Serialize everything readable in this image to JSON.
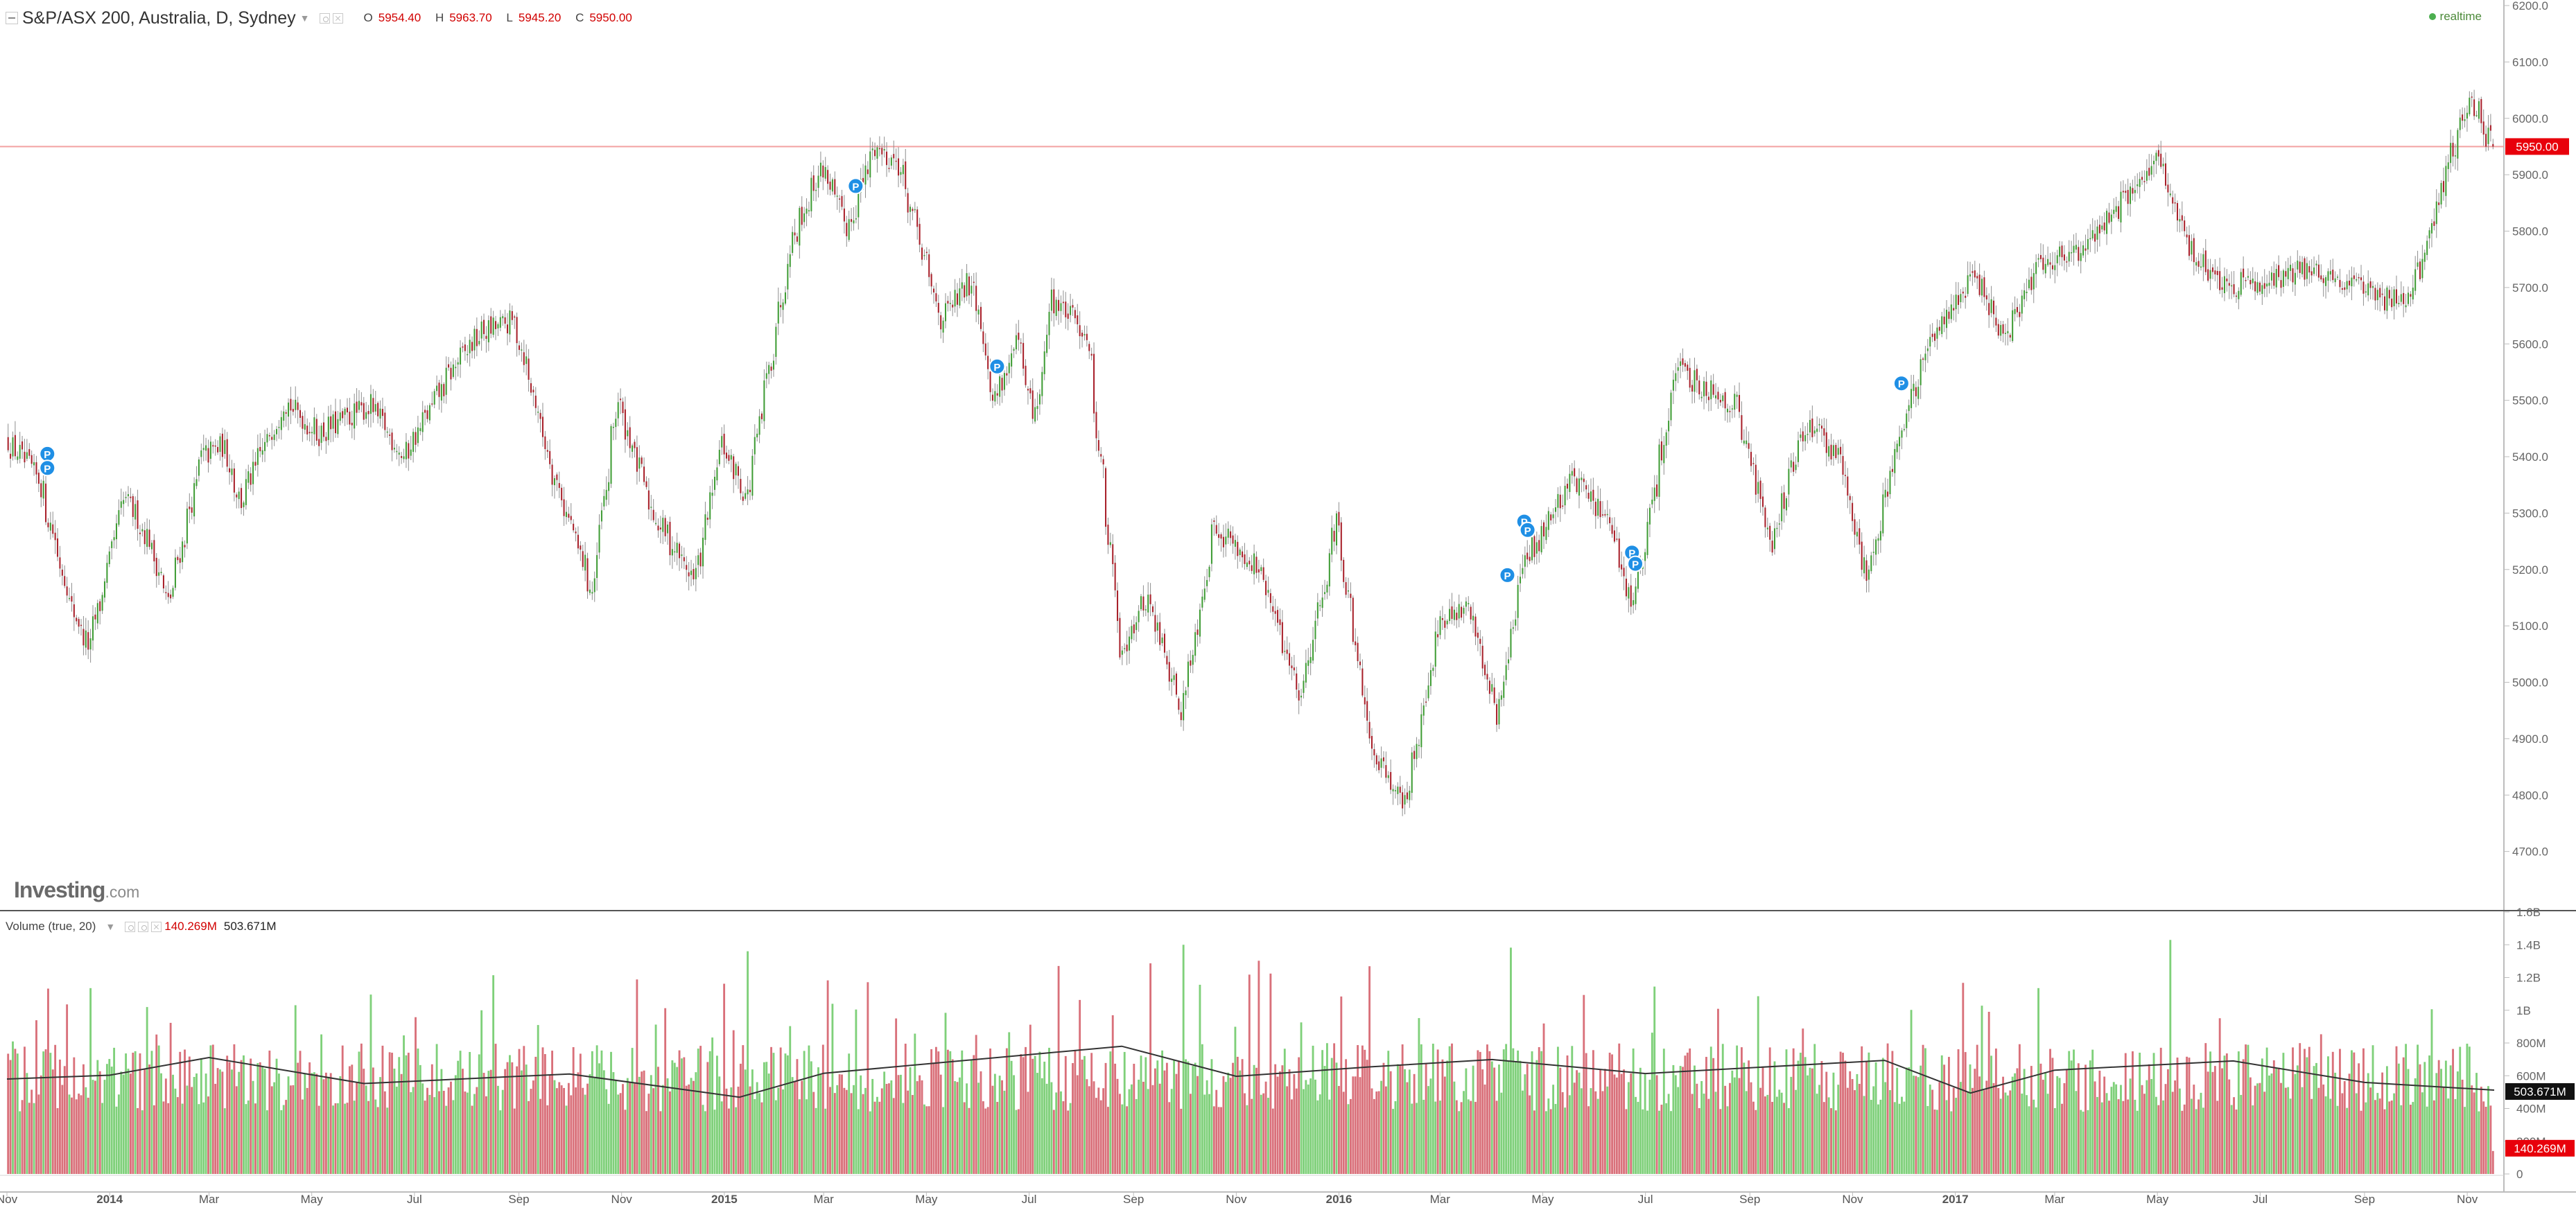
{
  "header": {
    "title": "S&P/ASX 200, Australia, D, Sydney",
    "ohlc": [
      {
        "label": "O",
        "value": "5954.40"
      },
      {
        "label": "H",
        "value": "5963.70"
      },
      {
        "label": "L",
        "value": "5945.20"
      },
      {
        "label": "C",
        "value": "5950.00"
      }
    ]
  },
  "status": {
    "realtime": "realtime"
  },
  "branding": {
    "logo_main": "Investing",
    "logo_suffix": ".com"
  },
  "volume_legend": {
    "title": "Volume (true, 20)",
    "value": "140.269M",
    "ma_value": "503.671M"
  },
  "colors": {
    "up": "#3f9c35",
    "down": "#a8202a",
    "vol_up": "#7fd07a",
    "vol_down": "#d9707a",
    "price_line": "#f3a0a0",
    "last_price_bg": "#e8000b",
    "ma_line": "#333333",
    "marker": "#1f8fe5"
  },
  "chart_data": [
    {
      "type": "candlestick",
      "title": "S&P/ASX 200, Australia, D, Sydney",
      "x_start": "2013-11-01",
      "x_end": "2017-11-17",
      "x_ticks": [
        {
          "label": "Nov",
          "date": "2013-11-01"
        },
        {
          "label": "2014",
          "date": "2014-01-01"
        },
        {
          "label": "Mar",
          "date": "2014-03-01"
        },
        {
          "label": "May",
          "date": "2014-05-01"
        },
        {
          "label": "Jul",
          "date": "2014-07-01"
        },
        {
          "label": "Sep",
          "date": "2014-09-01"
        },
        {
          "label": "Nov",
          "date": "2014-11-01"
        },
        {
          "label": "2015",
          "date": "2015-01-01"
        },
        {
          "label": "Mar",
          "date": "2015-03-01"
        },
        {
          "label": "May",
          "date": "2015-05-01"
        },
        {
          "label": "Jul",
          "date": "2015-07-01"
        },
        {
          "label": "Sep",
          "date": "2015-09-01"
        },
        {
          "label": "Nov",
          "date": "2015-11-01"
        },
        {
          "label": "2016",
          "date": "2016-01-01"
        },
        {
          "label": "Mar",
          "date": "2016-03-01"
        },
        {
          "label": "May",
          "date": "2016-05-01"
        },
        {
          "label": "Jul",
          "date": "2016-07-01"
        },
        {
          "label": "Sep",
          "date": "2016-09-01"
        },
        {
          "label": "Nov",
          "date": "2016-11-01"
        },
        {
          "label": "2017",
          "date": "2017-01-01"
        },
        {
          "label": "Mar",
          "date": "2017-03-01"
        },
        {
          "label": "May",
          "date": "2017-05-01"
        },
        {
          "label": "Jul",
          "date": "2017-07-01"
        },
        {
          "label": "Sep",
          "date": "2017-09-01"
        },
        {
          "label": "Nov",
          "date": "2017-11-01"
        }
      ],
      "y_ticks": [
        "4700.0",
        "4800.0",
        "4900.0",
        "5000.0",
        "5100.0",
        "5200.0",
        "5300.0",
        "5400.0",
        "5500.0",
        "5600.0",
        "5700.0",
        "5800.0",
        "5900.0",
        "6000.0",
        "6100.0",
        "6200.0"
      ],
      "ylim": [
        4600,
        6200
      ],
      "last_price": 5950.0,
      "last_price_label": "5950.00",
      "close_path": [
        {
          "date": "2013-11-01",
          "close": 5430
        },
        {
          "date": "2013-11-20",
          "close": 5360
        },
        {
          "date": "2013-12-10",
          "close": 5130
        },
        {
          "date": "2013-12-20",
          "close": 5060
        },
        {
          "date": "2014-01-10",
          "close": 5330
        },
        {
          "date": "2014-01-25",
          "close": 5250
        },
        {
          "date": "2014-02-05",
          "close": 5140
        },
        {
          "date": "2014-02-25",
          "close": 5400
        },
        {
          "date": "2014-03-10",
          "close": 5420
        },
        {
          "date": "2014-03-20",
          "close": 5320
        },
        {
          "date": "2014-04-15",
          "close": 5500
        },
        {
          "date": "2014-05-05",
          "close": 5440
        },
        {
          "date": "2014-06-05",
          "close": 5490
        },
        {
          "date": "2014-06-25",
          "close": 5400
        },
        {
          "date": "2014-07-25",
          "close": 5560
        },
        {
          "date": "2014-08-10",
          "close": 5620
        },
        {
          "date": "2014-08-30",
          "close": 5640
        },
        {
          "date": "2014-09-20",
          "close": 5390
        },
        {
          "date": "2014-10-15",
          "close": 5160
        },
        {
          "date": "2014-10-30",
          "close": 5500
        },
        {
          "date": "2014-11-20",
          "close": 5300
        },
        {
          "date": "2014-12-15",
          "close": 5180
        },
        {
          "date": "2014-12-31",
          "close": 5420
        },
        {
          "date": "2015-01-15",
          "close": 5330
        },
        {
          "date": "2015-02-10",
          "close": 5780
        },
        {
          "date": "2015-03-01",
          "close": 5920
        },
        {
          "date": "2015-03-15",
          "close": 5800
        },
        {
          "date": "2015-04-01",
          "close": 5950
        },
        {
          "date": "2015-04-15",
          "close": 5920
        },
        {
          "date": "2015-05-10",
          "close": 5640
        },
        {
          "date": "2015-05-30",
          "close": 5720
        },
        {
          "date": "2015-06-10",
          "close": 5500
        },
        {
          "date": "2015-06-25",
          "close": 5600
        },
        {
          "date": "2015-07-05",
          "close": 5450
        },
        {
          "date": "2015-07-15",
          "close": 5680
        },
        {
          "date": "2015-08-05",
          "close": 5620
        },
        {
          "date": "2015-08-25",
          "close": 5060
        },
        {
          "date": "2015-09-10",
          "close": 5150
        },
        {
          "date": "2015-09-30",
          "close": 4950
        },
        {
          "date": "2015-10-20",
          "close": 5280
        },
        {
          "date": "2015-11-15",
          "close": 5200
        },
        {
          "date": "2015-12-10",
          "close": 4980
        },
        {
          "date": "2015-12-31",
          "close": 5280
        },
        {
          "date": "2016-01-20",
          "close": 4900
        },
        {
          "date": "2016-02-10",
          "close": 4780
        },
        {
          "date": "2016-03-01",
          "close": 5100
        },
        {
          "date": "2016-03-20",
          "close": 5130
        },
        {
          "date": "2016-04-05",
          "close": 4940
        },
        {
          "date": "2016-04-20",
          "close": 5200
        },
        {
          "date": "2016-05-20",
          "close": 5370
        },
        {
          "date": "2016-06-10",
          "close": 5280
        },
        {
          "date": "2016-06-25",
          "close": 5130
        },
        {
          "date": "2016-07-20",
          "close": 5550
        },
        {
          "date": "2016-08-10",
          "close": 5520
        },
        {
          "date": "2016-08-25",
          "close": 5490
        },
        {
          "date": "2016-09-15",
          "close": 5250
        },
        {
          "date": "2016-10-05",
          "close": 5460
        },
        {
          "date": "2016-10-25",
          "close": 5400
        },
        {
          "date": "2016-11-10",
          "close": 5190
        },
        {
          "date": "2016-12-01",
          "close": 5450
        },
        {
          "date": "2016-12-25",
          "close": 5650
        },
        {
          "date": "2017-01-15",
          "close": 5720
        },
        {
          "date": "2017-02-01",
          "close": 5600
        },
        {
          "date": "2017-02-20",
          "close": 5750
        },
        {
          "date": "2017-03-15",
          "close": 5760
        },
        {
          "date": "2017-04-15",
          "close": 5860
        },
        {
          "date": "2017-05-01",
          "close": 5930
        },
        {
          "date": "2017-05-20",
          "close": 5780
        },
        {
          "date": "2017-06-10",
          "close": 5700
        },
        {
          "date": "2017-07-10",
          "close": 5720
        },
        {
          "date": "2017-08-10",
          "close": 5730
        },
        {
          "date": "2017-09-10",
          "close": 5680
        },
        {
          "date": "2017-10-01",
          "close": 5690
        },
        {
          "date": "2017-10-20",
          "close": 5900
        },
        {
          "date": "2017-11-05",
          "close": 6040
        },
        {
          "date": "2017-11-17",
          "close": 5950
        }
      ],
      "markers": [
        {
          "label": "P",
          "date": "2013-11-25",
          "price": 5405
        },
        {
          "label": "P",
          "date": "2013-11-25",
          "price": 5380
        },
        {
          "label": "P",
          "date": "2015-03-20",
          "price": 5880
        },
        {
          "label": "P",
          "date": "2015-06-12",
          "price": 5560
        },
        {
          "label": "P",
          "date": "2016-04-10",
          "price": 5190
        },
        {
          "label": "P",
          "date": "2016-04-20",
          "price": 5285
        },
        {
          "label": "P",
          "date": "2016-04-22",
          "price": 5270
        },
        {
          "label": "P",
          "date": "2016-06-23",
          "price": 5230
        },
        {
          "label": "P",
          "date": "2016-06-25",
          "price": 5210
        },
        {
          "label": "P",
          "date": "2016-11-30",
          "price": 5530
        }
      ]
    },
    {
      "type": "bar",
      "title": "Volume (true, 20)",
      "y_ticks": [
        "0",
        "200M",
        "400M",
        "600M",
        "800M",
        "1B",
        "1.2B",
        "1.4B",
        "1.6B"
      ],
      "ylim": [
        0,
        1600000000
      ],
      "current_volume": 140269000,
      "current_volume_label": "140.269M",
      "ma20": 503671000,
      "ma20_label": "503.671M",
      "ma_path": [
        {
          "date": "2013-11-01",
          "value": 580000000
        },
        {
          "date": "2014-01-01",
          "value": 600000000
        },
        {
          "date": "2014-03-01",
          "value": 700000000
        },
        {
          "date": "2014-06-01",
          "value": 560000000
        },
        {
          "date": "2014-10-01",
          "value": 620000000
        },
        {
          "date": "2015-01-10",
          "value": 460000000
        },
        {
          "date": "2015-03-01",
          "value": 620000000
        },
        {
          "date": "2015-08-25",
          "value": 790000000
        },
        {
          "date": "2015-11-01",
          "value": 600000000
        },
        {
          "date": "2016-01-20",
          "value": 660000000
        },
        {
          "date": "2016-04-01",
          "value": 690000000
        },
        {
          "date": "2016-07-01",
          "value": 600000000
        },
        {
          "date": "2016-11-20",
          "value": 700000000
        },
        {
          "date": "2017-01-10",
          "value": 490000000
        },
        {
          "date": "2017-03-01",
          "value": 640000000
        },
        {
          "date": "2017-06-15",
          "value": 680000000
        },
        {
          "date": "2017-09-01",
          "value": 560000000
        },
        {
          "date": "2017-11-17",
          "value": 503671000
        }
      ]
    }
  ]
}
